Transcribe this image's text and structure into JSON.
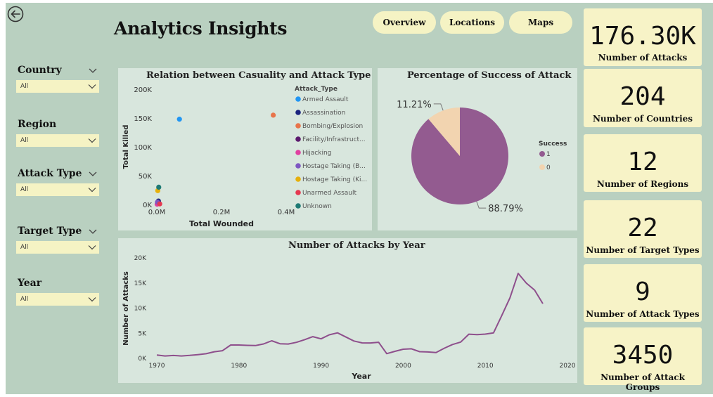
{
  "title": "Analytics Insights",
  "nav": [
    "Overview",
    "Locations",
    "Maps"
  ],
  "kpis": [
    {
      "value": "176.30K",
      "label": "Number of Attacks"
    },
    {
      "value": "204",
      "label": "Number of Countries"
    },
    {
      "value": "12",
      "label": "Number of Regions"
    },
    {
      "value": "22",
      "label": "Number of Target Types"
    },
    {
      "value": "9",
      "label": "Number of Attack Types"
    },
    {
      "value": "3450",
      "label": "Number of Attack Groups"
    }
  ],
  "filters": [
    {
      "label": "Country",
      "value": "All"
    },
    {
      "label": "Region",
      "value": "All"
    },
    {
      "label": "Attack Type",
      "value": "All"
    },
    {
      "label": "Target Type",
      "value": "All"
    },
    {
      "label": "Year",
      "value": "All"
    }
  ],
  "icons": {
    "back": "back-arrow-icon",
    "caret": "chevron-down-icon"
  },
  "colors": {
    "background": "#b9d0c0",
    "panel": "#d8e6dd",
    "kpi": "#f7f3c7",
    "line": "#8e4f8c"
  },
  "chart_data": [
    {
      "type": "scatter",
      "title": "Relation between Casuality and Attack Type",
      "xlabel": "Total Wounded",
      "ylabel": "Total Killed",
      "xticks": [
        "0.0M",
        "0.2M",
        "0.4M"
      ],
      "yticks": [
        "0K",
        "50K",
        "100K",
        "150K",
        "200K"
      ],
      "xlim": [
        0,
        0.4
      ],
      "ylim": [
        0,
        200000
      ],
      "legend_title": "Attack_Type",
      "legend_position": "right",
      "series": [
        {
          "name": "Armed Assault",
          "color": "#2196f3",
          "points": [
            [
              0.07,
              148000
            ]
          ]
        },
        {
          "name": "Assassination",
          "color": "#1a237e",
          "points": [
            [
              0.005,
              6000
            ]
          ]
        },
        {
          "name": "Bombing/Explosion",
          "color": "#e8744a",
          "points": [
            [
              0.36,
              155000
            ]
          ]
        },
        {
          "name": "Facility/Infrastruct...",
          "color": "#5c1a6e",
          "points": [
            [
              0.003,
              3000
            ]
          ]
        },
        {
          "name": "Hijacking",
          "color": "#e040a0",
          "points": [
            [
              0.001,
              500
            ]
          ]
        },
        {
          "name": "Hostage Taking (B...",
          "color": "#7e57c2",
          "points": [
            [
              0.002,
              4000
            ]
          ]
        },
        {
          "name": "Hostage Taking (Ki...",
          "color": "#e6b00c",
          "points": [
            [
              0.003,
              24000
            ]
          ]
        },
        {
          "name": "Unarmed Assault",
          "color": "#e53950",
          "points": [
            [
              0.009,
              1000
            ]
          ]
        },
        {
          "name": "Unknown",
          "color": "#1e7a74",
          "points": [
            [
              0.006,
              30000
            ]
          ]
        }
      ]
    },
    {
      "type": "pie",
      "title": "Percentage of Success of Attack",
      "legend_title": "Success",
      "legend_position": "right",
      "slices": [
        {
          "name": "1",
          "value": 88.79,
          "label": "88.79%",
          "color": "#935b90"
        },
        {
          "name": "0",
          "value": 11.21,
          "label": "11.21%",
          "color": "#f2d4b0"
        }
      ]
    },
    {
      "type": "line",
      "title": "Number of Attacks by Year",
      "xlabel": "Year",
      "ylabel": "Number of Attacks",
      "xticks": [
        "1970",
        "1980",
        "1990",
        "2000",
        "2010",
        "2020"
      ],
      "yticks": [
        "0K",
        "5K",
        "10K",
        "15K",
        "20K"
      ],
      "xlim": [
        1970,
        2020
      ],
      "ylim": [
        0,
        20000
      ],
      "x": [
        1970,
        1971,
        1972,
        1973,
        1974,
        1975,
        1976,
        1977,
        1978,
        1979,
        1980,
        1981,
        1982,
        1983,
        1984,
        1985,
        1986,
        1987,
        1988,
        1989,
        1990,
        1991,
        1992,
        1994,
        1995,
        1996,
        1997,
        1998,
        1999,
        2000,
        2001,
        2002,
        2003,
        2004,
        2005,
        2006,
        2007,
        2008,
        2009,
        2010,
        2011,
        2012,
        2013,
        2014,
        2015,
        2016,
        2017
      ],
      "y": [
        651,
        471,
        568,
        473,
        581,
        740,
        923,
        1319,
        1526,
        2662,
        2662,
        2586,
        2545,
        2870,
        3495,
        2915,
        2860,
        3183,
        3721,
        4324,
        3887,
        4683,
        5071,
        3456,
        3081,
        3058,
        3197,
        934,
        1395,
        1814,
        1906,
        1333,
        1278,
        1166,
        2017,
        2758,
        3242,
        4805,
        4721,
        4826,
        5076,
        8522,
        12036,
        16903,
        14965,
        13587,
        10900
      ]
    }
  ]
}
